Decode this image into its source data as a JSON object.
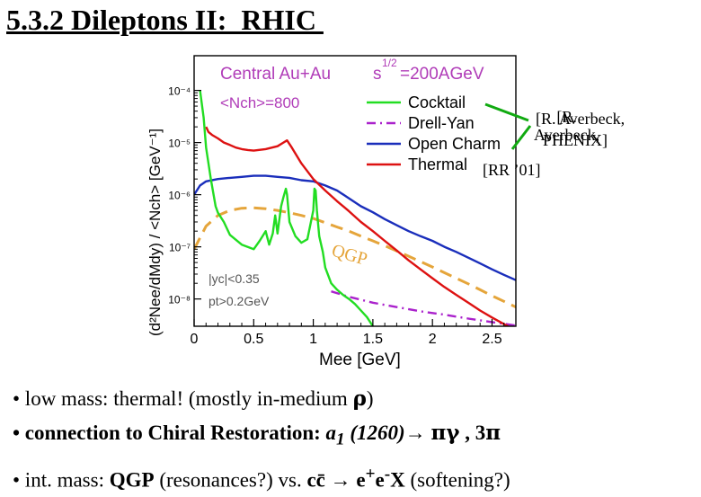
{
  "slide": {
    "title": "5.3.2 Dileptons II:  RHIC "
  },
  "references": {
    "averbeck": "[R. Averbeck,",
    "phenix": "PHENIX]",
    "rr01": "[RR ’01]"
  },
  "chart_data": {
    "type": "line",
    "title": "Central Au+Au  s^1/2=200AGeV",
    "title_main": "Central Au+Au",
    "title_energy": "=200AGeV",
    "annotation_nch": "<Nch>=800",
    "annotation_cuts": [
      "|yc|<0.35",
      "pt>0.2GeV"
    ],
    "qgp_label": "QGP",
    "xlabel": "Mee [GeV]",
    "ylabel": "(d²Nee/dMdy) / <Nch> [GeV⁻¹]",
    "x_scale": "linear",
    "y_scale": "log",
    "xlim": [
      0,
      2.7
    ],
    "ylim": [
      3e-09,
      0.00012
    ],
    "xticks": [
      0,
      0.5,
      1,
      1.5,
      2,
      2.5
    ],
    "xtick_labels": [
      "0",
      "0.5",
      "1",
      "1.5",
      "2",
      "2.5"
    ],
    "yticks": [
      1e-08,
      1e-07,
      1e-06,
      1e-05,
      0.0001
    ],
    "ytick_labels": [
      "10⁻⁸",
      "10⁻⁷",
      "10⁻⁶",
      "10⁻⁵",
      "10⁻⁴"
    ],
    "grid": false,
    "legend_position": "top-right",
    "colors": {
      "cocktail": "#22dd22",
      "drell_yan": "#aa22cc",
      "open_charm": "#1a2ebb",
      "thermal": "#dd1111",
      "qgp": "#e5a53b",
      "title": "#b03cb8",
      "nch": "#b03cb8"
    },
    "series": [
      {
        "name": "Cocktail",
        "key": "cocktail",
        "style": "solid",
        "x": [
          0.05,
          0.08,
          0.1,
          0.14,
          0.18,
          0.2,
          0.25,
          0.3,
          0.4,
          0.5,
          0.55,
          0.6,
          0.63,
          0.66,
          0.68,
          0.7,
          0.73,
          0.75,
          0.77,
          0.78,
          0.8,
          0.85,
          0.9,
          0.95,
          1.0,
          1.01,
          1.02,
          1.03,
          1.05,
          1.08,
          1.1,
          1.15,
          1.2,
          1.25,
          1.3,
          1.35,
          1.4,
          1.45,
          1.5
        ],
        "y": [
          0.0001,
          3e-05,
          8e-06,
          2e-06,
          6e-07,
          4.5e-07,
          3e-07,
          1.7e-07,
          1.1e-07,
          9e-08,
          1.3e-07,
          2e-07,
          1.1e-07,
          1.8e-07,
          4e-07,
          1.8e-07,
          6e-07,
          9e-07,
          1.3e-06,
          1e-06,
          3e-07,
          1.6e-07,
          1.2e-07,
          1.4e-07,
          5e-07,
          1.3e-06,
          1.2e-06,
          5e-07,
          1.6e-07,
          8e-08,
          4e-08,
          2e-08,
          1.5e-08,
          1.2e-08,
          1e-08,
          8e-09,
          6e-09,
          4.5e-09,
          3e-09
        ]
      },
      {
        "name": "Drell-Yan",
        "key": "drell_yan",
        "style": "dashdot",
        "x": [
          1.15,
          1.3,
          1.5,
          1.7,
          1.9,
          2.1,
          2.3,
          2.5,
          2.7
        ],
        "y": [
          1.4e-08,
          1.1e-08,
          8.5e-09,
          7e-09,
          5.8e-09,
          5e-09,
          4.2e-09,
          3.6e-09,
          3.1e-09
        ]
      },
      {
        "name": "Open Charm",
        "key": "open_charm",
        "style": "solid",
        "x": [
          0.0,
          0.05,
          0.1,
          0.2,
          0.3,
          0.4,
          0.5,
          0.6,
          0.7,
          0.8,
          0.9,
          1.0,
          1.1,
          1.2,
          1.3,
          1.4,
          1.5,
          1.6,
          1.7,
          1.8,
          1.9,
          2.0,
          2.1,
          2.2,
          2.3,
          2.4,
          2.5,
          2.6,
          2.7
        ],
        "y": [
          1e-06,
          1.5e-06,
          1.8e-06,
          2e-06,
          2.1e-06,
          2.2e-06,
          2.3e-06,
          2.3e-06,
          2.2e-06,
          2.1e-06,
          1.9e-06,
          1.8e-06,
          1.5e-06,
          1.2e-06,
          8.5e-07,
          6e-07,
          4.6e-07,
          3.4e-07,
          2.6e-07,
          2e-07,
          1.6e-07,
          1.3e-07,
          1e-07,
          8e-08,
          6.2e-08,
          4.8e-08,
          3.7e-08,
          2.9e-08,
          2.3e-08
        ]
      },
      {
        "name": "Thermal",
        "key": "thermal",
        "style": "solid",
        "x": [
          0.1,
          0.12,
          0.15,
          0.2,
          0.25,
          0.3,
          0.35,
          0.4,
          0.45,
          0.5,
          0.6,
          0.7,
          0.75,
          0.78,
          0.82,
          0.9,
          1.0,
          1.1,
          1.2,
          1.3,
          1.4,
          1.5,
          1.6,
          1.7,
          1.8,
          1.9,
          2.0,
          2.1,
          2.2,
          2.3,
          2.4,
          2.5,
          2.6,
          2.7
        ],
        "y": [
          2e-05,
          1.6e-05,
          1.4e-05,
          1.2e-05,
          1e-05,
          9e-06,
          8e-06,
          7.5e-06,
          7.2e-06,
          7e-06,
          7.5e-06,
          8.5e-06,
          1e-05,
          1.1e-05,
          8e-06,
          4e-06,
          2e-06,
          1.2e-06,
          7.5e-07,
          4.8e-07,
          3e-07,
          2e-07,
          1.3e-07,
          8.5e-08,
          5.5e-08,
          3.7e-08,
          2.5e-08,
          1.7e-08,
          1.2e-08,
          8.5e-09,
          6e-09,
          4.4e-09,
          3.3e-09,
          2.5e-09
        ]
      },
      {
        "key": "qgp",
        "style": "dashed",
        "x": [
          0.0,
          0.1,
          0.2,
          0.3,
          0.4,
          0.5,
          0.6,
          0.7,
          0.8,
          0.9,
          1.0,
          1.1,
          1.2,
          1.3,
          1.4,
          1.5,
          1.6,
          1.7,
          1.8,
          1.9,
          2.0,
          2.1,
          2.2,
          2.3,
          2.4,
          2.5,
          2.6,
          2.7
        ],
        "y": [
          9e-08,
          2.5e-07,
          4e-07,
          5e-07,
          5.5e-07,
          5.6e-07,
          5.4e-07,
          5e-07,
          4.5e-07,
          4e-07,
          3.5e-07,
          2.9e-07,
          2.4e-07,
          2e-07,
          1.6e-07,
          1.3e-07,
          1.05e-07,
          8.3e-08,
          6.6e-08,
          5.2e-08,
          4.1e-08,
          3.2e-08,
          2.5e-08,
          1.95e-08,
          1.5e-08,
          1.15e-08,
          9e-09,
          7e-09
        ]
      }
    ],
    "legend": [
      {
        "label": "Cocktail",
        "key": "cocktail"
      },
      {
        "label": "Drell-Yan",
        "key": "drell_yan"
      },
      {
        "label": "Open Charm",
        "key": "open_charm"
      },
      {
        "label": "Thermal",
        "key": "thermal"
      }
    ]
  },
  "bullets": [
    {
      "prefix": "• low mass: thermal!  (mostly in-medium ",
      "symbol": "ρ",
      "suffix": ")"
    },
    {
      "prefix": "• connection to Chiral Restoration:  ",
      "a1": "a",
      "a1_sub": "1",
      "a1_rest": " (1260)→ ",
      "pigamma": "πγ",
      "sep": " , 3",
      "pi": "π"
    },
    {
      "prefix": "• int. mass: ",
      "qgp": "QGP",
      "mid": " (resonances?) vs.  ",
      "cc": "cc̄",
      "arrow": " → e",
      "plus": "+",
      "e2": "e",
      "minus": "-",
      "x": "X",
      "suffix": "  (softening?)"
    }
  ]
}
